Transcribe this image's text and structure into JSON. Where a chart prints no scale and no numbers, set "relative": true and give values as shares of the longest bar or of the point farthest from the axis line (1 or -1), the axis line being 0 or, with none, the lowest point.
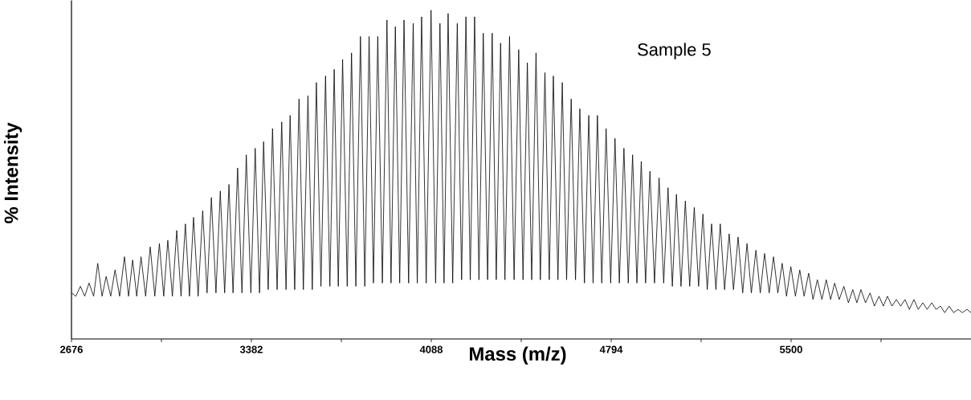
{
  "chart_data": {
    "type": "line",
    "relative": true,
    "xlabel": "Mass (m/z)",
    "ylabel": "% Intensity",
    "annotations": [
      "Sample 5"
    ],
    "xlim": [
      2676,
      6206
    ],
    "xticks": [
      2676,
      {
        "value": 3029,
        "label": null
      },
      3382,
      {
        "value": 3735,
        "label": null
      },
      4088,
      {
        "value": 4441,
        "label": null
      },
      4794,
      {
        "value": 5147,
        "label": null
      },
      5500,
      {
        "value": 5853,
        "label": null
      }
    ],
    "series": [
      {
        "color": "#000000",
        "x": [
          2676,
          2693,
          2711,
          2728,
          2745,
          2763,
          2779,
          2796,
          2812,
          2830,
          2847,
          2865,
          2884,
          2900,
          2916,
          2932,
          2949,
          2967,
          2985,
          3003,
          3021,
          3038,
          3054,
          3072,
          3089,
          3106,
          3123,
          3139,
          3155,
          3173,
          3191,
          3208,
          3225,
          3243,
          3260,
          3277,
          3294,
          3310,
          3328,
          3345,
          3362,
          3380,
          3397,
          3414,
          3430,
          3448,
          3465,
          3483,
          3501,
          3518,
          3534,
          3552,
          3569,
          3586,
          3604,
          3621,
          3637,
          3655,
          3673,
          3690,
          3707,
          3723,
          3740,
          3758,
          3775,
          3792,
          3810,
          3827,
          3844,
          3861,
          3878,
          3896,
          3914,
          3930,
          3947,
          3964,
          3981,
          3999,
          4017,
          4033,
          4050,
          4068,
          4087,
          4105,
          4122,
          4138,
          4154,
          4172,
          4190,
          4207,
          4224,
          4241,
          4258,
          4275,
          4292,
          4309,
          4327,
          4343,
          4360,
          4377,
          4395,
          4413,
          4431,
          4448,
          4465,
          4482,
          4499,
          4516,
          4534,
          4551,
          4567,
          4585,
          4602,
          4619,
          4637,
          4654,
          4671,
          4689,
          4706,
          4723,
          4740,
          4757,
          4774,
          4792,
          4809,
          4826,
          4844,
          4861,
          4878,
          4895,
          4912,
          4929,
          4946,
          4964,
          4982,
          5000,
          5017,
          5034,
          5050,
          5068,
          5085,
          5102,
          5120,
          5137,
          5154,
          5171,
          5188,
          5205,
          5222,
          5239,
          5257,
          5274,
          5292,
          5310,
          5327,
          5344,
          5362,
          5379,
          5396,
          5414,
          5431,
          5448,
          5465,
          5482,
          5499,
          5517,
          5534,
          5551,
          5569,
          5586,
          5603,
          5621,
          5638,
          5655,
          5671,
          5689,
          5707,
          5725,
          5742,
          5758,
          5774,
          5792,
          5810,
          5827,
          5845,
          5862,
          5878,
          5896,
          5913,
          5930,
          5947,
          5964,
          5982,
          5999,
          6017,
          6034,
          6052,
          6069,
          6086,
          6103,
          6120,
          6138,
          6155,
          6172,
          6190,
          6206
        ],
        "values": [
          0.14,
          0.13,
          0.16,
          0.13,
          0.17,
          0.13,
          0.23,
          0.13,
          0.19,
          0.13,
          0.21,
          0.13,
          0.25,
          0.13,
          0.24,
          0.13,
          0.25,
          0.13,
          0.28,
          0.13,
          0.29,
          0.13,
          0.3,
          0.13,
          0.33,
          0.13,
          0.35,
          0.13,
          0.37,
          0.13,
          0.39,
          0.14,
          0.43,
          0.14,
          0.45,
          0.14,
          0.47,
          0.14,
          0.52,
          0.14,
          0.56,
          0.14,
          0.58,
          0.14,
          0.6,
          0.15,
          0.64,
          0.15,
          0.66,
          0.15,
          0.68,
          0.15,
          0.73,
          0.15,
          0.74,
          0.15,
          0.78,
          0.16,
          0.8,
          0.16,
          0.82,
          0.16,
          0.85,
          0.16,
          0.87,
          0.16,
          0.92,
          0.16,
          0.92,
          0.17,
          0.92,
          0.17,
          0.97,
          0.17,
          0.95,
          0.17,
          0.97,
          0.17,
          0.96,
          0.17,
          0.98,
          0.17,
          1.0,
          0.17,
          0.96,
          0.17,
          0.99,
          0.17,
          0.96,
          0.18,
          0.98,
          0.18,
          0.98,
          0.18,
          0.93,
          0.18,
          0.93,
          0.18,
          0.9,
          0.18,
          0.92,
          0.18,
          0.88,
          0.18,
          0.84,
          0.18,
          0.87,
          0.18,
          0.81,
          0.18,
          0.8,
          0.18,
          0.78,
          0.18,
          0.73,
          0.18,
          0.7,
          0.17,
          0.68,
          0.17,
          0.68,
          0.17,
          0.64,
          0.17,
          0.61,
          0.17,
          0.58,
          0.17,
          0.56,
          0.17,
          0.54,
          0.17,
          0.51,
          0.17,
          0.49,
          0.17,
          0.46,
          0.16,
          0.44,
          0.16,
          0.42,
          0.16,
          0.4,
          0.16,
          0.38,
          0.15,
          0.35,
          0.15,
          0.35,
          0.15,
          0.32,
          0.15,
          0.31,
          0.14,
          0.29,
          0.14,
          0.27,
          0.14,
          0.26,
          0.14,
          0.25,
          0.14,
          0.23,
          0.13,
          0.22,
          0.13,
          0.21,
          0.13,
          0.2,
          0.12,
          0.18,
          0.12,
          0.18,
          0.12,
          0.17,
          0.12,
          0.16,
          0.11,
          0.15,
          0.11,
          0.15,
          0.11,
          0.14,
          0.1,
          0.13,
          0.1,
          0.13,
          0.1,
          0.12,
          0.1,
          0.12,
          0.09,
          0.12,
          0.09,
          0.11,
          0.09,
          0.11,
          0.09,
          0.1,
          0.08,
          0.1,
          0.08,
          0.09,
          0.08,
          0.09,
          0.08
        ]
      }
    ]
  }
}
